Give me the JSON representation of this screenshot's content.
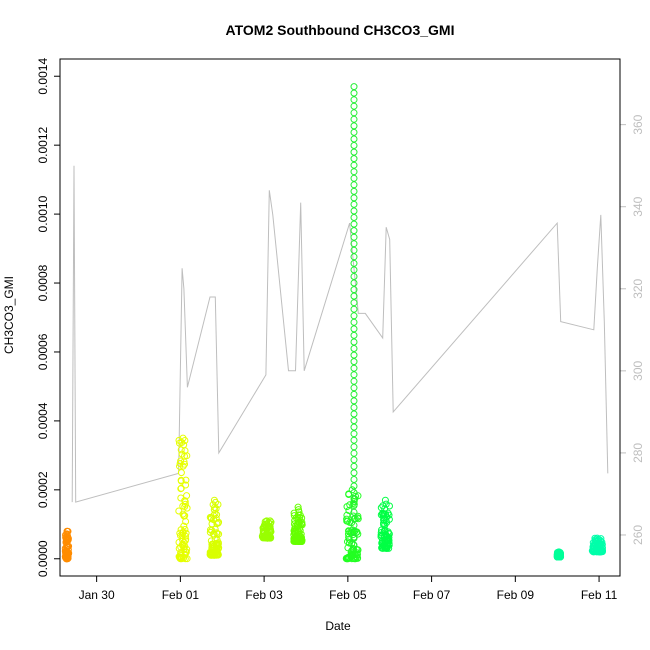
{
  "chart_data": {
    "type": "scatter",
    "title": "ATOM2 Southbound CH3CO3_GMI",
    "xlabel": "Date",
    "ylabel": "CH3CO3_GMI",
    "x_axis": {
      "range": [
        "2017-01-29 03:00",
        "2017-02-11 12:00"
      ],
      "ticks": [
        {
          "date": "2017-01-30",
          "label": "Jan 30"
        },
        {
          "date": "2017-02-01",
          "label": "Feb 01"
        },
        {
          "date": "2017-02-03",
          "label": "Feb 03"
        },
        {
          "date": "2017-02-05",
          "label": "Feb 05"
        },
        {
          "date": "2017-02-07",
          "label": "Feb 07"
        },
        {
          "date": "2017-02-09",
          "label": "Feb 09"
        },
        {
          "date": "2017-02-11",
          "label": "Feb 11"
        }
      ]
    },
    "y_axis": {
      "range": [
        -5e-05,
        0.00145
      ],
      "ticks": [
        {
          "value": 0,
          "label": "0.0000"
        },
        {
          "value": 0.0002,
          "label": "0.0002"
        },
        {
          "value": 0.0004,
          "label": "0.0004"
        },
        {
          "value": 0.0006,
          "label": "0.0006"
        },
        {
          "value": 0.0008,
          "label": "0.0008"
        },
        {
          "value": 0.001,
          "label": "0.0010"
        },
        {
          "value": 0.0012,
          "label": "0.0012"
        },
        {
          "value": 0.0014,
          "label": "0.0014"
        }
      ]
    },
    "y2_axis": {
      "range": [
        250,
        376
      ],
      "color": "#bebebe",
      "ticks": [
        {
          "value": 260,
          "label": "260"
        },
        {
          "value": 280,
          "label": "280"
        },
        {
          "value": 300,
          "label": "300"
        },
        {
          "value": 320,
          "label": "320"
        },
        {
          "value": 340,
          "label": "340"
        },
        {
          "value": 360,
          "label": "360"
        }
      ]
    },
    "grid": false,
    "legend": "none",
    "point_clusters": [
      {
        "start": "2017-01-29 06:00",
        "end": "2017-01-29 08:00",
        "min": 0.0,
        "max": 8e-05,
        "color": "#ff8c00"
      },
      {
        "start": "2017-01-31 23:00",
        "end": "2017-02-01 04:00",
        "min": 0.0,
        "max": 0.00035,
        "color": "#e6ff00"
      },
      {
        "start": "2017-02-01 17:00",
        "end": "2017-02-01 22:00",
        "min": 1e-05,
        "max": 0.00017,
        "color": "#d9ff00"
      },
      {
        "start": "2017-02-02 23:00",
        "end": "2017-02-03 04:00",
        "min": 6e-05,
        "max": 0.00011,
        "color": "#99ff00"
      },
      {
        "start": "2017-02-03 17:00",
        "end": "2017-02-03 22:00",
        "min": 5e-05,
        "max": 0.00015,
        "color": "#66ff00"
      },
      {
        "start": "2017-02-04 23:00",
        "end": "2017-02-05 06:00",
        "min": 0.0,
        "max": 0.0002,
        "color": "#22ff22"
      },
      {
        "start": "2017-02-05 19:00",
        "end": "2017-02-06 00:00",
        "min": 3e-05,
        "max": 0.00017,
        "color": "#00ff44"
      },
      {
        "start": "2017-02-10 00:00",
        "end": "2017-02-10 02:00",
        "min": 5e-06,
        "max": 2e-05,
        "color": "#00ff99"
      },
      {
        "start": "2017-02-10 20:00",
        "end": "2017-02-11 02:00",
        "min": 2e-05,
        "max": 6e-05,
        "color": "#00ffaa"
      }
    ],
    "spike": {
      "x": "2017-02-05 03:30",
      "min": 4e-05,
      "max": 0.00137,
      "color": "#22ee33"
    },
    "altitude_line": {
      "axis": "y2",
      "color": "#bebebe",
      "points": [
        [
          "2017-01-29 10:00",
          268
        ],
        [
          "2017-01-29 11:00",
          350
        ],
        [
          "2017-01-29 12:00",
          268
        ],
        [
          "2017-01-31 23:00",
          275
        ],
        [
          "2017-02-01 01:00",
          325
        ],
        [
          "2017-02-01 02:00",
          320
        ],
        [
          "2017-02-01 04:00",
          296
        ],
        [
          "2017-02-01 17:00",
          318
        ],
        [
          "2017-02-01 20:00",
          318
        ],
        [
          "2017-02-01 22:00",
          280
        ],
        [
          "2017-02-03 01:00",
          299
        ],
        [
          "2017-02-03 03:00",
          344
        ],
        [
          "2017-02-03 05:00",
          338
        ],
        [
          "2017-02-03 14:00",
          300
        ],
        [
          "2017-02-03 18:00",
          300
        ],
        [
          "2017-02-03 21:00",
          341
        ],
        [
          "2017-02-03 23:00",
          300
        ],
        [
          "2017-02-05 01:00",
          336
        ],
        [
          "2017-02-05 06:00",
          314
        ],
        [
          "2017-02-05 10:00",
          314
        ],
        [
          "2017-02-05 20:00",
          308
        ],
        [
          "2017-02-05 22:00",
          335
        ],
        [
          "2017-02-06 00:00",
          332
        ],
        [
          "2017-02-06 02:00",
          290
        ],
        [
          "2017-02-10 00:00",
          336
        ],
        [
          "2017-02-10 02:00",
          312
        ],
        [
          "2017-02-10 21:00",
          310
        ],
        [
          "2017-02-10 23:00",
          325
        ],
        [
          "2017-02-11 01:00",
          338
        ],
        [
          "2017-02-11 03:00",
          312
        ],
        [
          "2017-02-11 05:00",
          275
        ]
      ]
    }
  }
}
